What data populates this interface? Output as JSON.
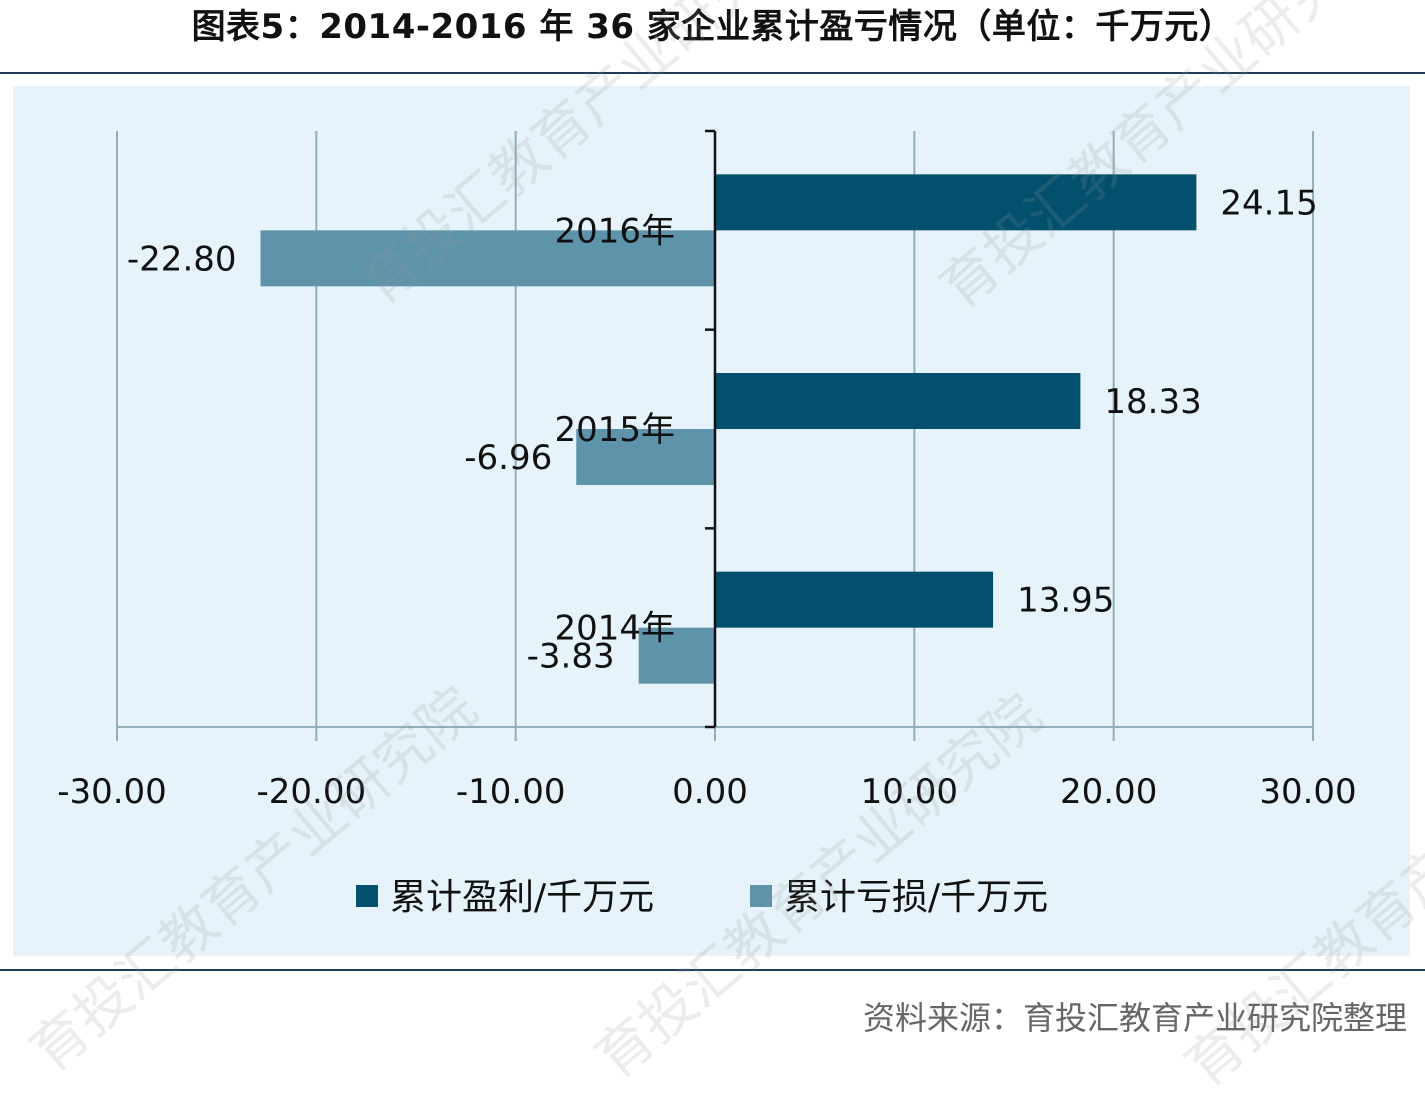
{
  "title": "图表5：2014-2016 年 36 家企业累计盈亏情况（单位：千万元）",
  "source": "资料来源：育投汇教育产业研究院整理",
  "watermark_text": "育投汇教育产业研究院",
  "colors": {
    "profit": "#03506e",
    "loss": "#5e94aa",
    "plot_bg": "#e6f3fb",
    "grid": "#8fb0bb"
  },
  "chart_data": {
    "type": "bar",
    "orientation": "horizontal",
    "categories": [
      "2014年",
      "2015年",
      "2016年"
    ],
    "series": [
      {
        "name": "累计盈利/千万元",
        "values": [
          13.95,
          18.33,
          24.15
        ],
        "labels": [
          "13.95",
          "18.33",
          "24.15"
        ]
      },
      {
        "name": "累计亏损/千万元",
        "values": [
          -3.83,
          -6.96,
          -22.8
        ],
        "labels": [
          "-3.83",
          "-6.96",
          "-22.80"
        ]
      }
    ],
    "xlim": [
      -30,
      30
    ],
    "xticks": [
      -30,
      -20,
      -10,
      0,
      10,
      20,
      30
    ],
    "xtick_labels": [
      "-30.00",
      "-20.00",
      "-10.00",
      "0.00",
      "10.00",
      "20.00",
      "30.00"
    ],
    "grid": true,
    "legend_position": "bottom"
  }
}
